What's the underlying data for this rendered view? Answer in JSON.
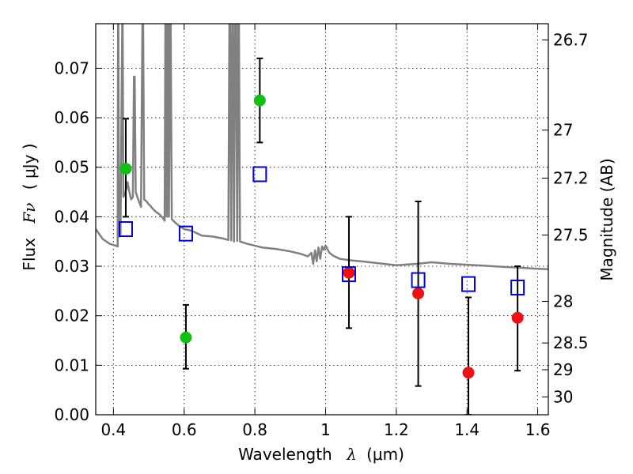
{
  "chart_data": {
    "type": "scatter",
    "xlabel": "Wavelength",
    "xlabel_symbol": "λ",
    "xlabel_unit": "(μm)",
    "ylabel": "Flux",
    "ylabel_symbol": "Fν",
    "ylabel_unit": "( μJy )",
    "y2label": "Magnitude (AB)",
    "xlim": [
      0.35,
      1.63
    ],
    "ylim": [
      0.0,
      0.079
    ],
    "grid": true,
    "x_ticks": [
      0.4,
      0.6,
      0.8,
      1.0,
      1.2,
      1.4,
      1.6
    ],
    "x_tick_labels": [
      "0.4",
      "0.6",
      "0.8",
      "1",
      "1.2",
      "1.4",
      "1.6"
    ],
    "y_ticks": [
      0.0,
      0.01,
      0.02,
      0.03,
      0.04,
      0.05,
      0.06,
      0.07
    ],
    "y_tick_labels": [
      "0.00",
      "0.01",
      "0.02",
      "0.03",
      "0.04",
      "0.05",
      "0.06",
      "0.07"
    ],
    "y2_ticks": [
      {
        "label": "26.7",
        "flux": 0.0757
      },
      {
        "label": "27",
        "flux": 0.0575
      },
      {
        "label": "27.2",
        "flux": 0.0478
      },
      {
        "label": "27.5",
        "flux": 0.0363
      },
      {
        "label": "28",
        "flux": 0.0229
      },
      {
        "label": "28.5",
        "flux": 0.0145
      },
      {
        "label": "29",
        "flux": 0.0091
      },
      {
        "label": "30",
        "flux": 0.0036
      }
    ],
    "series": [
      {
        "marker": "circle",
        "color": "#11c011",
        "points": [
          {
            "x": 0.435,
            "y": 0.0497,
            "ylo": 0.04,
            "yhi": 0.0598
          },
          {
            "x": 0.605,
            "y": 0.0156,
            "ylo": 0.0093,
            "yhi": 0.0222
          },
          {
            "x": 0.814,
            "y": 0.0635,
            "ylo": 0.055,
            "yhi": 0.072
          }
        ]
      },
      {
        "marker": "circle",
        "color": "#ee1111",
        "points": [
          {
            "x": 1.066,
            "y": 0.0287,
            "ylo": 0.0175,
            "yhi": 0.04
          },
          {
            "x": 1.262,
            "y": 0.0245,
            "ylo": 0.0058,
            "yhi": 0.0431
          },
          {
            "x": 1.404,
            "y": 0.0085,
            "ylo": 0.0,
            "yhi": 0.0237
          },
          {
            "x": 1.543,
            "y": 0.0196,
            "ylo": 0.0089,
            "yhi": 0.03
          }
        ]
      },
      {
        "marker": "open-square",
        "color": "#0000dd",
        "points": [
          {
            "x": 0.435,
            "y": 0.0375
          },
          {
            "x": 0.605,
            "y": 0.0366
          },
          {
            "x": 0.814,
            "y": 0.0486
          },
          {
            "x": 1.066,
            "y": 0.0284
          },
          {
            "x": 1.262,
            "y": 0.0272
          },
          {
            "x": 1.404,
            "y": 0.0264
          },
          {
            "x": 1.543,
            "y": 0.0257
          }
        ]
      }
    ],
    "model_spectrum": {
      "color": "#808080",
      "points": [
        [
          0.35,
          0.0375
        ],
        [
          0.37,
          0.0355
        ],
        [
          0.39,
          0.0345
        ],
        [
          0.405,
          0.0342
        ],
        [
          0.412,
          0.034
        ],
        [
          0.413,
          0.079
        ],
        [
          0.414,
          0.079
        ],
        [
          0.416,
          0.036
        ],
        [
          0.42,
          0.0365
        ],
        [
          0.425,
          0.079
        ],
        [
          0.426,
          0.079
        ],
        [
          0.428,
          0.044
        ],
        [
          0.432,
          0.0445
        ],
        [
          0.438,
          0.046
        ],
        [
          0.44,
          0.047
        ],
        [
          0.445,
          0.045
        ],
        [
          0.45,
          0.0435
        ],
        [
          0.455,
          0.044
        ],
        [
          0.458,
          0.0683
        ],
        [
          0.46,
          0.0683
        ],
        [
          0.463,
          0.045
        ],
        [
          0.47,
          0.0435
        ],
        [
          0.478,
          0.042
        ],
        [
          0.482,
          0.079
        ],
        [
          0.484,
          0.079
        ],
        [
          0.487,
          0.0435
        ],
        [
          0.495,
          0.043
        ],
        [
          0.5,
          0.0425
        ],
        [
          0.505,
          0.0422
        ],
        [
          0.51,
          0.0417
        ],
        [
          0.52,
          0.041
        ],
        [
          0.53,
          0.0405
        ],
        [
          0.54,
          0.0397
        ],
        [
          0.545,
          0.0392
        ],
        [
          0.547,
          0.079
        ],
        [
          0.549,
          0.079
        ],
        [
          0.551,
          0.04
        ],
        [
          0.553,
          0.079
        ],
        [
          0.555,
          0.079
        ],
        [
          0.557,
          0.04
        ],
        [
          0.56,
          0.079
        ],
        [
          0.562,
          0.079
        ],
        [
          0.565,
          0.0395
        ],
        [
          0.575,
          0.0388
        ],
        [
          0.585,
          0.0382
        ],
        [
          0.6,
          0.0375
        ],
        [
          0.62,
          0.0372
        ],
        [
          0.65,
          0.0362
        ],
        [
          0.68,
          0.036
        ],
        [
          0.71,
          0.0356
        ],
        [
          0.725,
          0.0353
        ],
        [
          0.728,
          0.079
        ],
        [
          0.73,
          0.079
        ],
        [
          0.733,
          0.0352
        ],
        [
          0.736,
          0.079
        ],
        [
          0.738,
          0.079
        ],
        [
          0.741,
          0.035
        ],
        [
          0.744,
          0.079
        ],
        [
          0.747,
          0.079
        ],
        [
          0.75,
          0.0351
        ],
        [
          0.753,
          0.079
        ],
        [
          0.755,
          0.079
        ],
        [
          0.758,
          0.035
        ],
        [
          0.78,
          0.0345
        ],
        [
          0.82,
          0.0338
        ],
        [
          0.86,
          0.0335
        ],
        [
          0.9,
          0.033
        ],
        [
          0.93,
          0.0325
        ],
        [
          0.95,
          0.032
        ],
        [
          0.96,
          0.0327
        ],
        [
          0.965,
          0.0305
        ],
        [
          0.97,
          0.0332
        ],
        [
          0.975,
          0.031
        ],
        [
          0.98,
          0.0338
        ],
        [
          0.985,
          0.0315
        ],
        [
          0.99,
          0.034
        ],
        [
          0.995,
          0.0333
        ],
        [
          1.0,
          0.0342
        ],
        [
          1.01,
          0.0328
        ],
        [
          1.02,
          0.0322
        ],
        [
          1.04,
          0.0315
        ],
        [
          1.07,
          0.0312
        ],
        [
          1.1,
          0.031
        ],
        [
          1.15,
          0.0306
        ],
        [
          1.2,
          0.0302
        ],
        [
          1.26,
          0.0305
        ],
        [
          1.3,
          0.0308
        ],
        [
          1.35,
          0.0305
        ],
        [
          1.4,
          0.0303
        ],
        [
          1.45,
          0.0301
        ],
        [
          1.5,
          0.0299
        ],
        [
          1.55,
          0.0297
        ],
        [
          1.6,
          0.0295
        ],
        [
          1.63,
          0.0294
        ]
      ]
    }
  }
}
